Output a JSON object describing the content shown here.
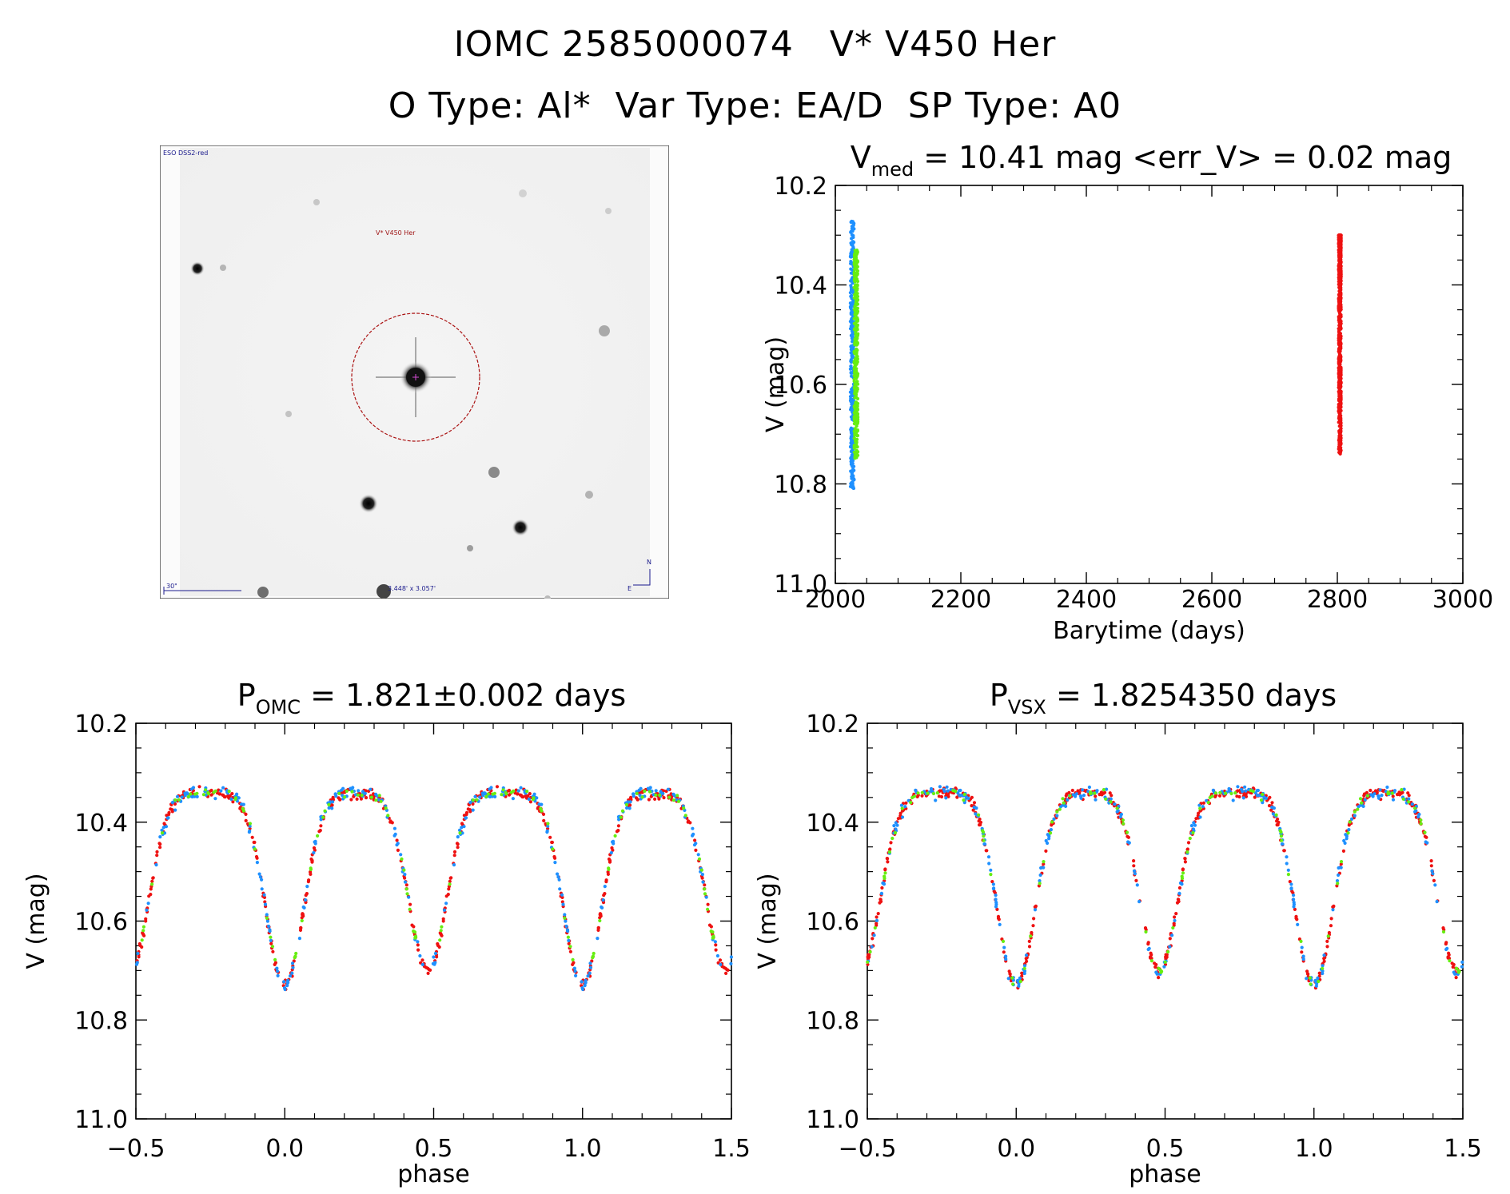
{
  "header": {
    "line1": "IOMC 2585000074   V* V450 Her",
    "line2": "O Type: Al*  Var Type: EA/D  SP Type: A0"
  },
  "finder_chart": {
    "survey_label": "ESO DSS2-red",
    "target_label": "V* V450 Her",
    "scale_label": "30\"",
    "fov_label": "3.448' x 3.057'",
    "compass_n": "N",
    "compass_e": "E"
  },
  "colors": {
    "series_blue": "#1e90ff",
    "series_green": "#66ee11",
    "series_red": "#ee1111",
    "finder_circle": "#aa1111",
    "finder_text": "#a01818",
    "finder_annot": "#1a1a8c"
  },
  "chart_data": [
    {
      "type": "scatter",
      "title_main": "V",
      "title_sub": "med",
      "title_rest": " = 10.41 mag <err_V> = 0.02 mag",
      "xlabel": "Barytime (days)",
      "ylabel": "V (mag)",
      "xlim": [
        2000,
        3000
      ],
      "ylim": [
        11.0,
        10.2
      ],
      "xticks": [
        "2000",
        "2200",
        "2400",
        "2600",
        "2800",
        "3000"
      ],
      "yticks": [
        "10.2",
        "10.4",
        "10.6",
        "10.8",
        "11.0"
      ],
      "series": [
        {
          "color": "blue",
          "x_range": [
            2024,
            2030
          ],
          "y_range": [
            10.27,
            10.81
          ]
        },
        {
          "color": "green",
          "x_range": [
            2030,
            2036
          ],
          "y_range": [
            10.33,
            10.76
          ]
        },
        {
          "color": "red",
          "x_range": [
            2802,
            2806
          ],
          "y_range": [
            10.3,
            10.74
          ]
        }
      ]
    },
    {
      "type": "scatter",
      "title_main": "P",
      "title_sub": "OMC",
      "title_rest": " = 1.821±0.002 days",
      "xlabel": "phase",
      "ylabel": "V (mag)",
      "xlim": [
        -0.5,
        1.5
      ],
      "ylim": [
        11.0,
        10.2
      ],
      "xticks": [
        "−0.5",
        "0.0",
        "0.5",
        "1.0",
        "1.5"
      ],
      "yticks": [
        "10.2",
        "10.4",
        "10.6",
        "10.8",
        "11.0"
      ],
      "light_curve": {
        "max_mag": 10.34,
        "primary_min": {
          "phase": 0.0,
          "mag": 10.73
        },
        "secondary_min": {
          "phase": 0.48,
          "mag": 10.7
        }
      }
    },
    {
      "type": "scatter",
      "title_main": "P",
      "title_sub": "VSX",
      "title_rest": " = 1.8254350 days",
      "xlabel": "phase",
      "ylabel": "V (mag)",
      "xlim": [
        -0.5,
        1.5
      ],
      "ylim": [
        11.0,
        10.2
      ],
      "xticks": [
        "−0.5",
        "0.0",
        "0.5",
        "1.0",
        "1.5"
      ],
      "yticks": [
        "10.2",
        "10.4",
        "10.6",
        "10.8",
        "11.0"
      ],
      "light_curve": {
        "max_mag": 10.34,
        "primary_min": {
          "phase": 0.0,
          "mag": 10.73
        },
        "secondary_min": {
          "phase": 0.48,
          "mag": 10.7
        }
      }
    }
  ]
}
